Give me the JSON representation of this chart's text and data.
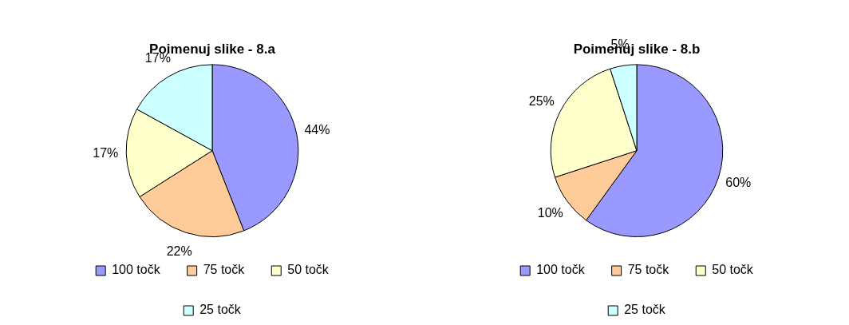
{
  "chart_data": [
    {
      "type": "pie",
      "title": "Poimenuj slike - 8.a",
      "categories": [
        "100 točk",
        "75 točk",
        "50 točk",
        "25 točk"
      ],
      "values": [
        44,
        22,
        17,
        17
      ],
      "value_labels": [
        "44%",
        "22%",
        "17%",
        "17%"
      ],
      "colors": [
        "#9999ff",
        "#ffcc99",
        "#ffffcc",
        "#ccffff"
      ],
      "legend": "bottom"
    },
    {
      "type": "pie",
      "title": "Poimenuj slike - 8.b",
      "categories": [
        "100 točk",
        "75 točk",
        "50 točk",
        "25 točk"
      ],
      "values": [
        60,
        10,
        25,
        5
      ],
      "value_labels": [
        "60%",
        "10%",
        "25%",
        "5%"
      ],
      "colors": [
        "#9999ff",
        "#ffcc99",
        "#ffffcc",
        "#ccffff"
      ],
      "legend": "bottom"
    }
  ]
}
